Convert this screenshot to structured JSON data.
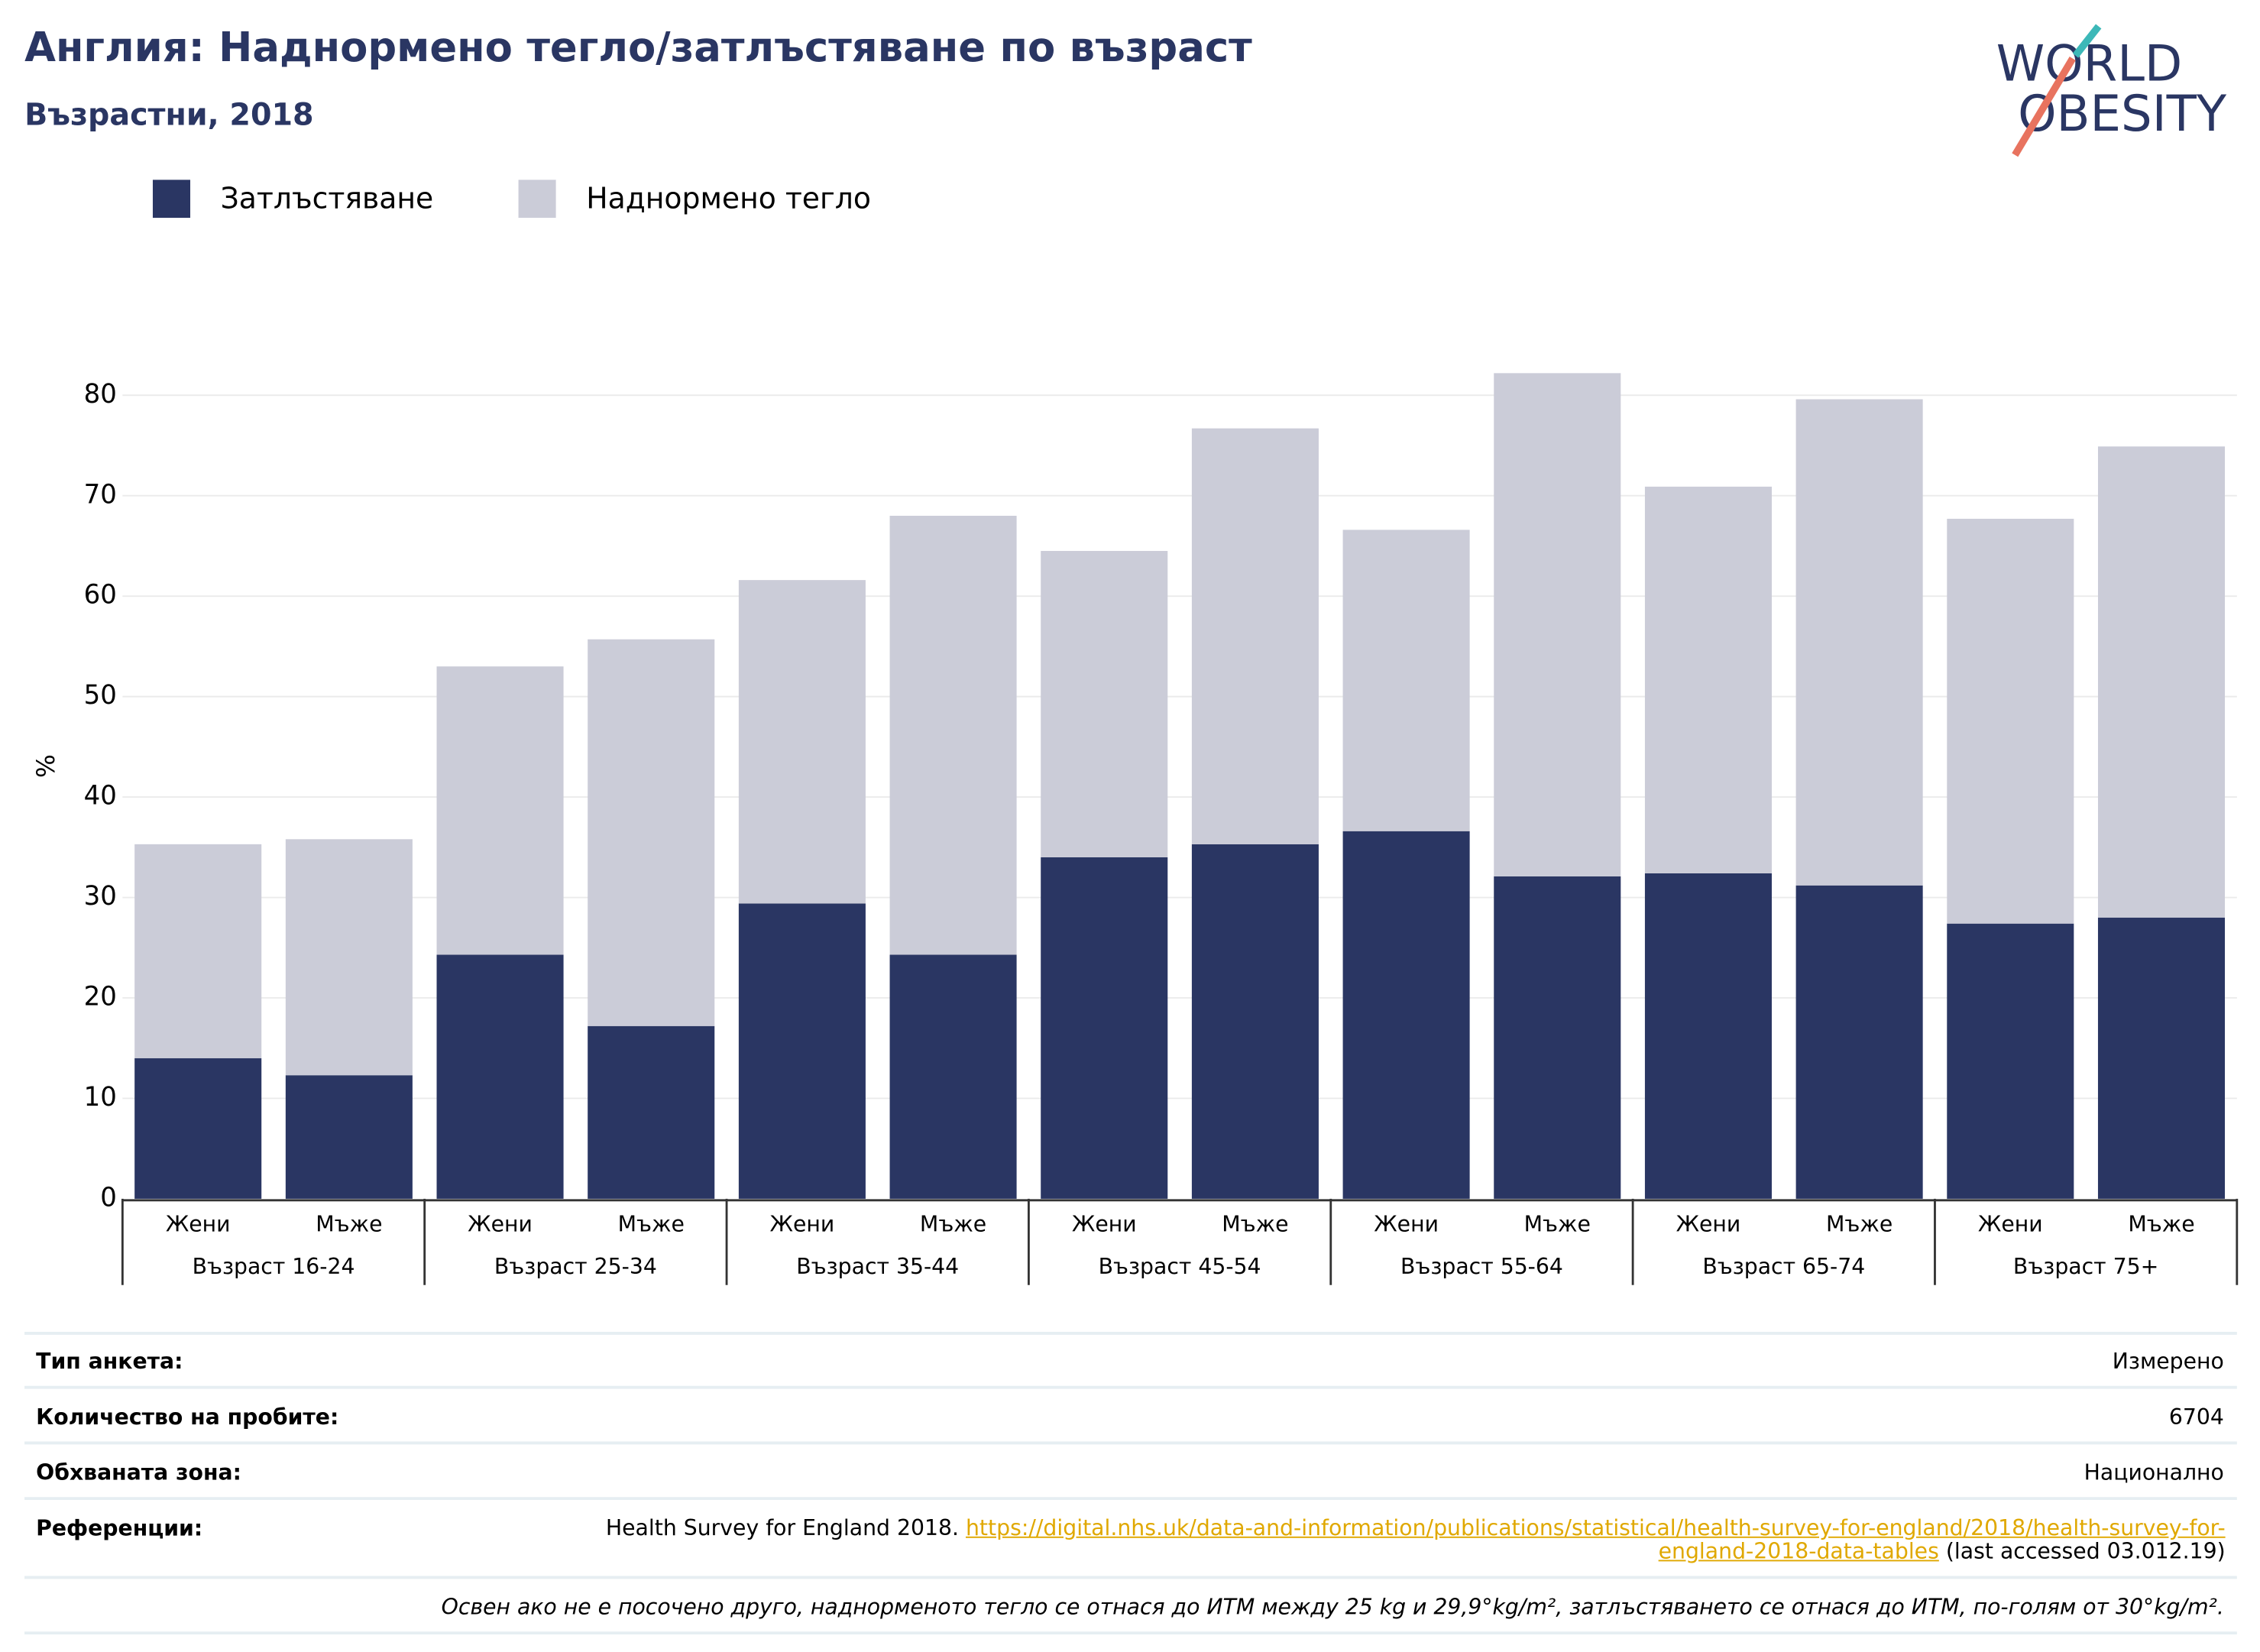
{
  "chart_data": {
    "type": "bar",
    "stacked": true,
    "title": "Англия: Наднормено тегло/затлъстяване по възраст",
    "subtitle": "Възрастни, 2018",
    "logo": [
      "WORLD",
      "OBESITY"
    ],
    "y_label": "%",
    "categories": [
      "Жени",
      "Мъже",
      "Жени",
      "Мъже",
      "Жени",
      "Мъже",
      "Жени",
      "Мъже",
      "Жени",
      "Мъже",
      "Жени",
      "Мъже",
      "Жени",
      "Мъже"
    ],
    "groups": [
      "Възраст 16-24",
      "Възраст 25-34",
      "Възраст 35-44",
      "Възраст 45-54",
      "Възраст 55-64",
      "Възраст 65-74",
      "Възраст 75+"
    ],
    "series": [
      {
        "name": "Затлъстяване",
        "color": "#2a3663",
        "values": [
          14,
          12.3,
          24.3,
          17.2,
          29.4,
          24.3,
          34,
          35.3,
          36.6,
          32.1,
          32.4,
          31.2,
          27.4,
          28
        ]
      },
      {
        "name": "Наднормено тегло",
        "color": "#cbccd8",
        "values": [
          21.3,
          23.5,
          28.7,
          38.5,
          32.2,
          43.7,
          30.5,
          41.4,
          30,
          50.1,
          38.5,
          48.4,
          40.3,
          46.9
        ]
      }
    ],
    "ylim": [
      0,
      85
    ],
    "yticks": [
      0,
      10,
      20,
      30,
      40,
      50,
      60,
      70,
      80
    ],
    "grid": true
  },
  "info_table": {
    "rows": [
      [
        "Тип анкета:",
        "Измерено"
      ],
      [
        "Количество на пробите:",
        "6704"
      ],
      [
        "Обхваната зона:",
        "Национално"
      ]
    ],
    "reference": {
      "label": "Референции:",
      "text": "Health Survey for England 2018.",
      "url": "https://digital.nhs.uk/data-and-information/publications/statistical/health-survey-for-england/2018/health-survey-for-england-2018-data-tables",
      "after": "(last accessed 03.012.19)"
    },
    "footnote": "Освен ако не е посочено друго, наднорменото тегло се отнася до ИТМ между 25 kg и 29,9°kg/m², затлъстяването се отнася до ИТМ, по-голям от 30°kg/m²."
  }
}
